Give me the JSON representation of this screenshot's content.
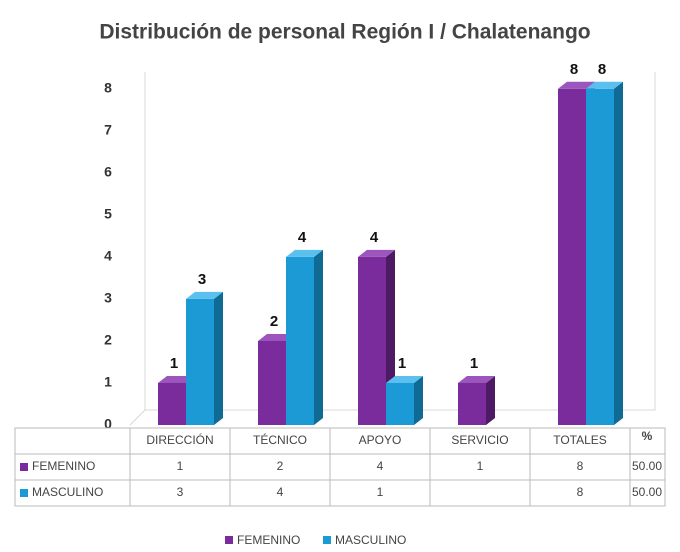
{
  "chart_data": {
    "type": "bar3d",
    "title": "Distribución de personal Región I /  Chalatenango",
    "categories": [
      "DIRECCIÓN",
      "TÉCNICO",
      "APOYO",
      "SERVICIO",
      "TOTALES"
    ],
    "percent_header": "%",
    "series": [
      {
        "name": "FEMENINO",
        "color": "#7a2c9c",
        "side": "#4d1a63",
        "top": "#9c55bd",
        "values": [
          1,
          2,
          4,
          1,
          8
        ],
        "percent": {
          "value": 50,
          "label": "50.00"
        }
      },
      {
        "name": "MASCULINO",
        "color": "#1b9ad6",
        "side": "#0f6a94",
        "top": "#5cc0ee",
        "values": [
          3,
          4,
          1,
          null,
          8
        ],
        "percent": {
          "value": 50,
          "label": "50.00"
        }
      }
    ],
    "ylim": [
      0,
      8.4
    ],
    "yticks": [
      0,
      1,
      2,
      3,
      4,
      5,
      6,
      7,
      8
    ],
    "legend": "bottom"
  }
}
